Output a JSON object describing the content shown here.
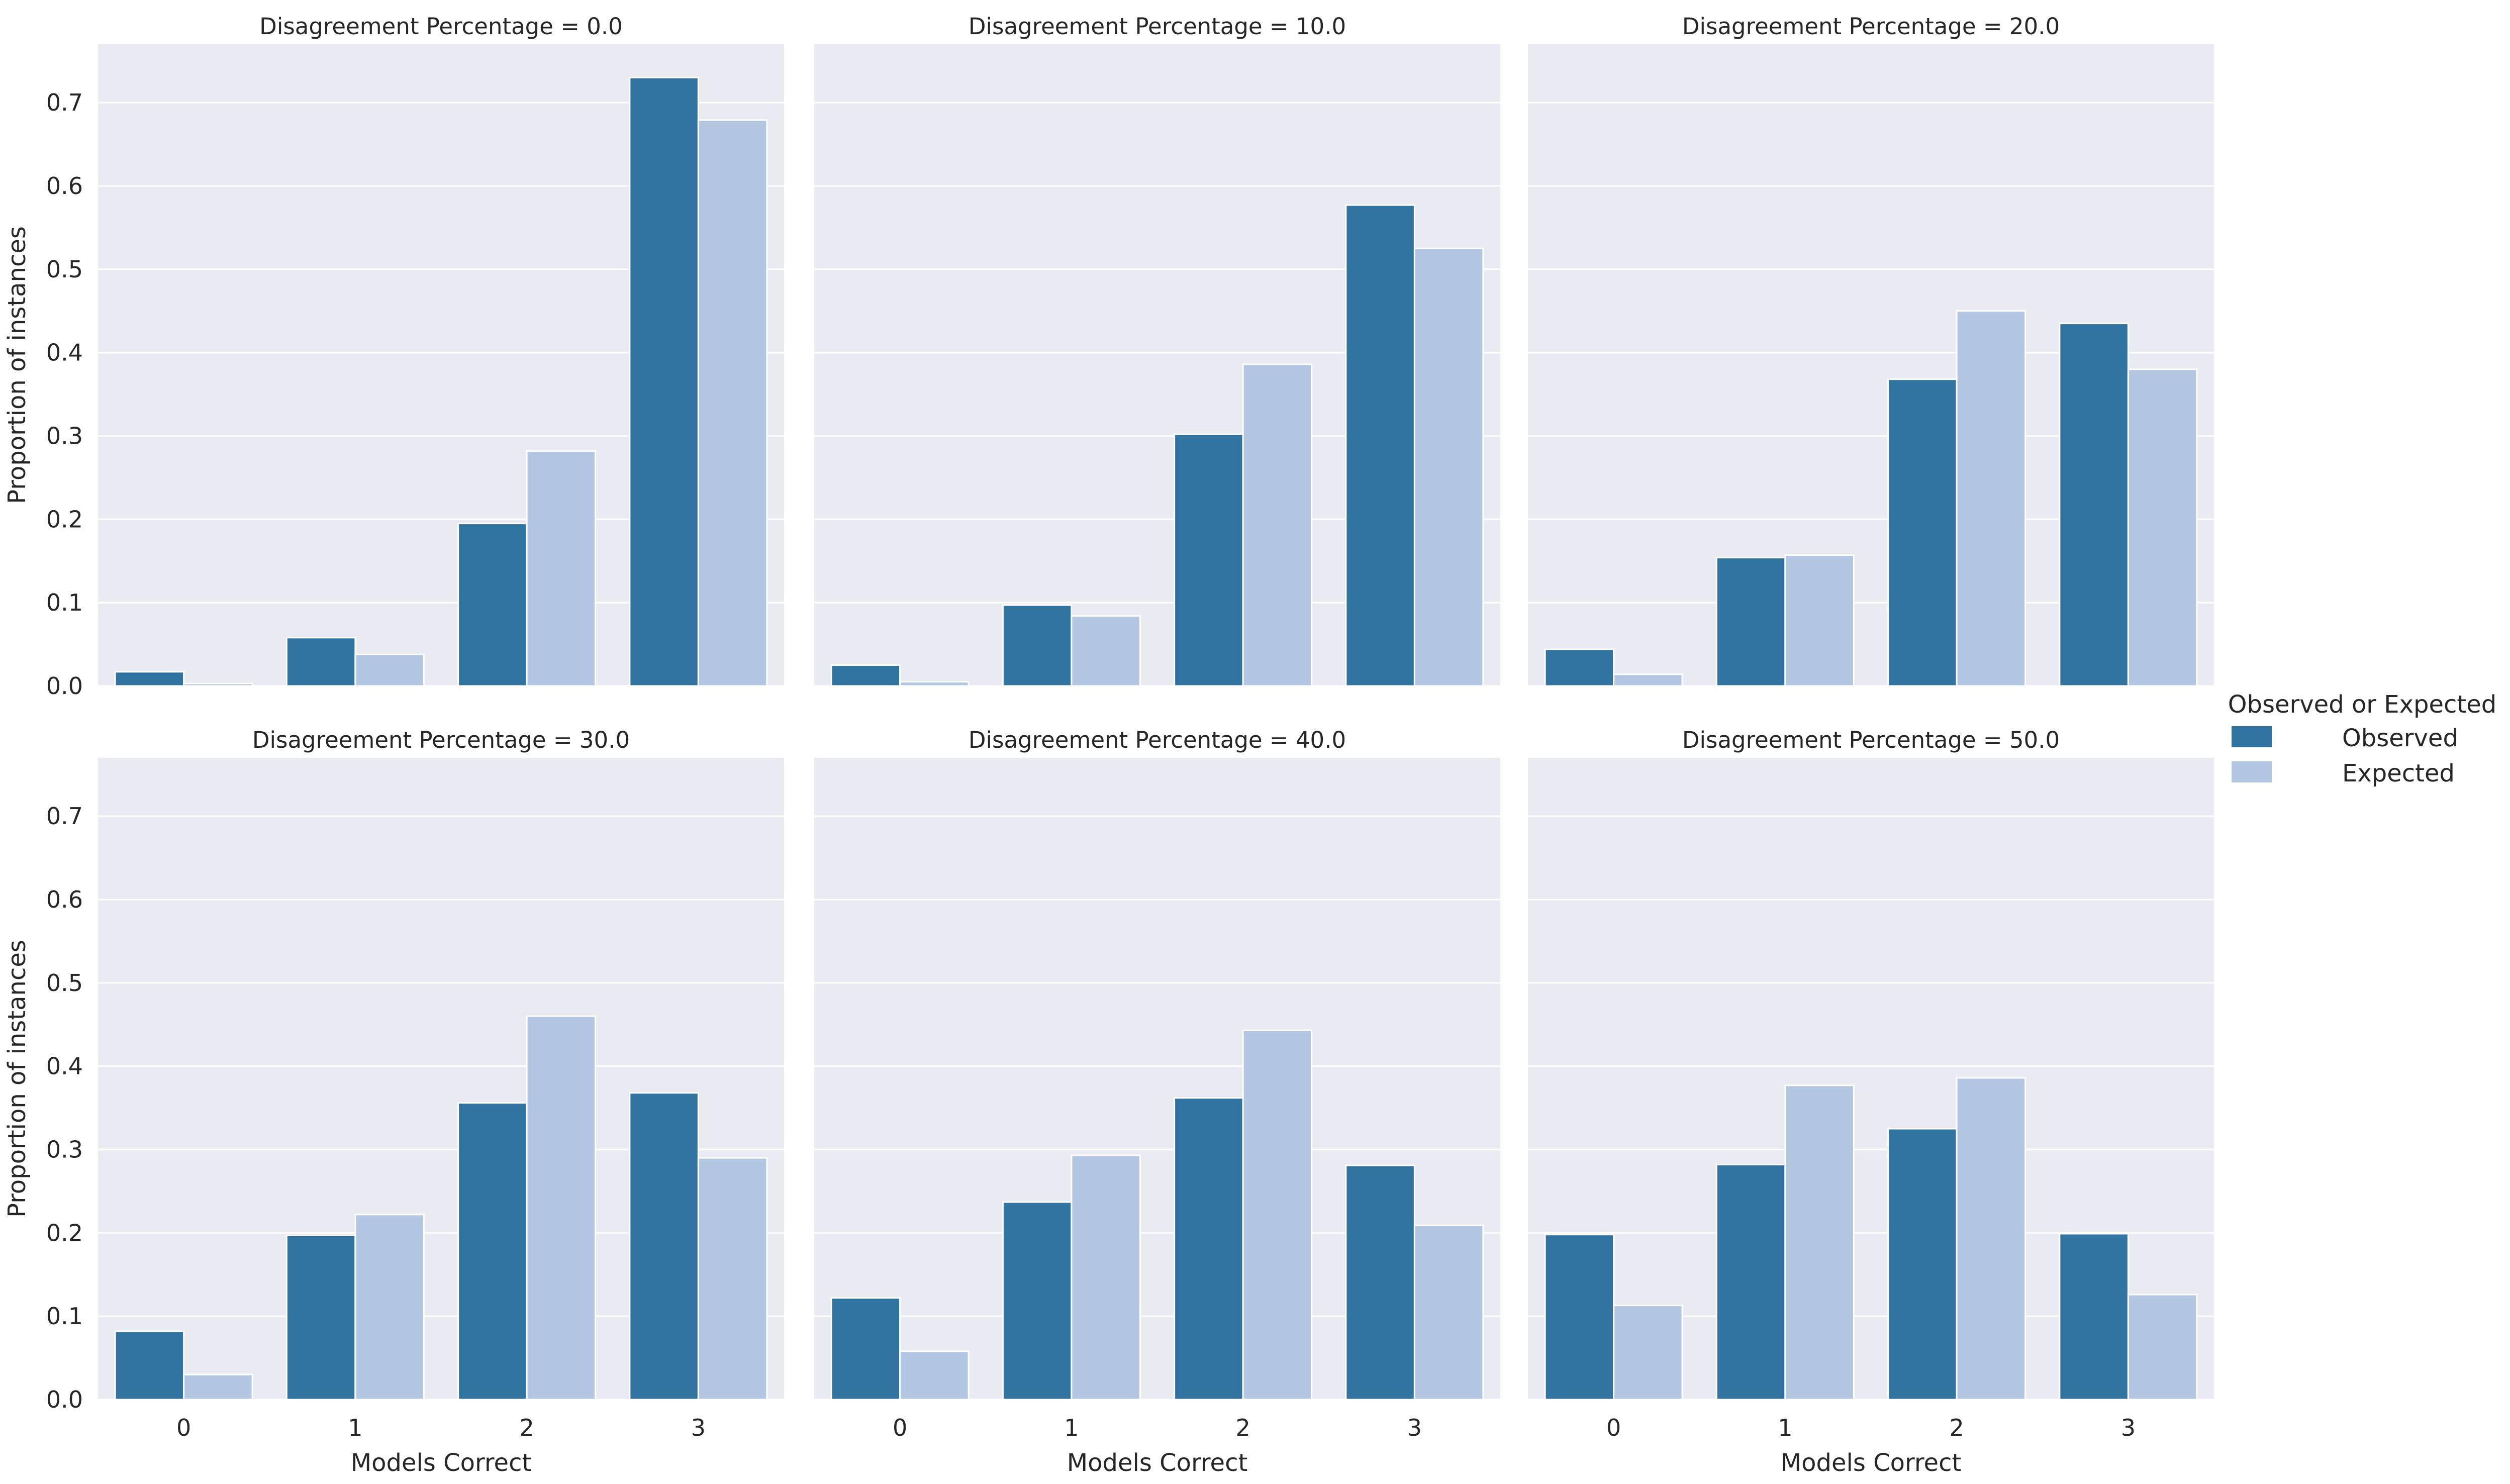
{
  "colors": {
    "observed": "#3274a1",
    "expected": "#b3c7e2"
  },
  "legend": {
    "title": "Observed or Expected",
    "items": [
      {
        "name": "Observed",
        "color": "#3274a1"
      },
      {
        "name": "Expected",
        "color": "#b3c7e2"
      }
    ]
  },
  "chart_data": [
    {
      "type": "bar",
      "title": "Disagreement Percentage = 0.0",
      "xlabel": "",
      "ylabel": "Proportion of instances",
      "categories": [
        "0",
        "1",
        "2",
        "3"
      ],
      "ylim": [
        0,
        0.77
      ],
      "yticks": [
        "0.0",
        "0.1",
        "0.2",
        "0.3",
        "0.4",
        "0.5",
        "0.6",
        "0.7"
      ],
      "series": [
        {
          "name": "Observed",
          "values": [
            0.017,
            0.058,
            0.195,
            0.73
          ]
        },
        {
          "name": "Expected",
          "values": [
            0.003,
            0.038,
            0.282,
            0.679
          ]
        }
      ]
    },
    {
      "type": "bar",
      "title": "Disagreement Percentage = 10.0",
      "xlabel": "",
      "ylabel": "",
      "categories": [
        "0",
        "1",
        "2",
        "3"
      ],
      "ylim": [
        0,
        0.77
      ],
      "yticks": [],
      "series": [
        {
          "name": "Observed",
          "values": [
            0.025,
            0.097,
            0.302,
            0.577
          ]
        },
        {
          "name": "Expected",
          "values": [
            0.005,
            0.084,
            0.386,
            0.525
          ]
        }
      ]
    },
    {
      "type": "bar",
      "title": "Disagreement Percentage = 20.0",
      "xlabel": "",
      "ylabel": "",
      "categories": [
        "0",
        "1",
        "2",
        "3"
      ],
      "ylim": [
        0,
        0.77
      ],
      "yticks": [],
      "series": [
        {
          "name": "Observed",
          "values": [
            0.044,
            0.154,
            0.368,
            0.435
          ]
        },
        {
          "name": "Expected",
          "values": [
            0.014,
            0.157,
            0.45,
            0.38
          ]
        }
      ]
    },
    {
      "type": "bar",
      "title": "Disagreement Percentage = 30.0",
      "xlabel": "Models Correct",
      "ylabel": "Proportion of instances",
      "categories": [
        "0",
        "1",
        "2",
        "3"
      ],
      "ylim": [
        0,
        0.77
      ],
      "yticks": [
        "0.0",
        "0.1",
        "0.2",
        "0.3",
        "0.4",
        "0.5",
        "0.6",
        "0.7"
      ],
      "series": [
        {
          "name": "Observed",
          "values": [
            0.082,
            0.197,
            0.356,
            0.368
          ]
        },
        {
          "name": "Expected",
          "values": [
            0.03,
            0.222,
            0.46,
            0.29
          ]
        }
      ]
    },
    {
      "type": "bar",
      "title": "Disagreement Percentage = 40.0",
      "xlabel": "Models Correct",
      "ylabel": "",
      "categories": [
        "0",
        "1",
        "2",
        "3"
      ],
      "ylim": [
        0,
        0.77
      ],
      "yticks": [],
      "series": [
        {
          "name": "Observed",
          "values": [
            0.122,
            0.237,
            0.362,
            0.281
          ]
        },
        {
          "name": "Expected",
          "values": [
            0.058,
            0.293,
            0.443,
            0.209
          ]
        }
      ]
    },
    {
      "type": "bar",
      "title": "Disagreement Percentage = 50.0",
      "xlabel": "Models Correct",
      "ylabel": "",
      "categories": [
        "0",
        "1",
        "2",
        "3"
      ],
      "ylim": [
        0,
        0.77
      ],
      "yticks": [],
      "series": [
        {
          "name": "Observed",
          "values": [
            0.198,
            0.282,
            0.325,
            0.199
          ]
        },
        {
          "name": "Expected",
          "values": [
            0.113,
            0.377,
            0.386,
            0.126
          ]
        }
      ]
    }
  ]
}
